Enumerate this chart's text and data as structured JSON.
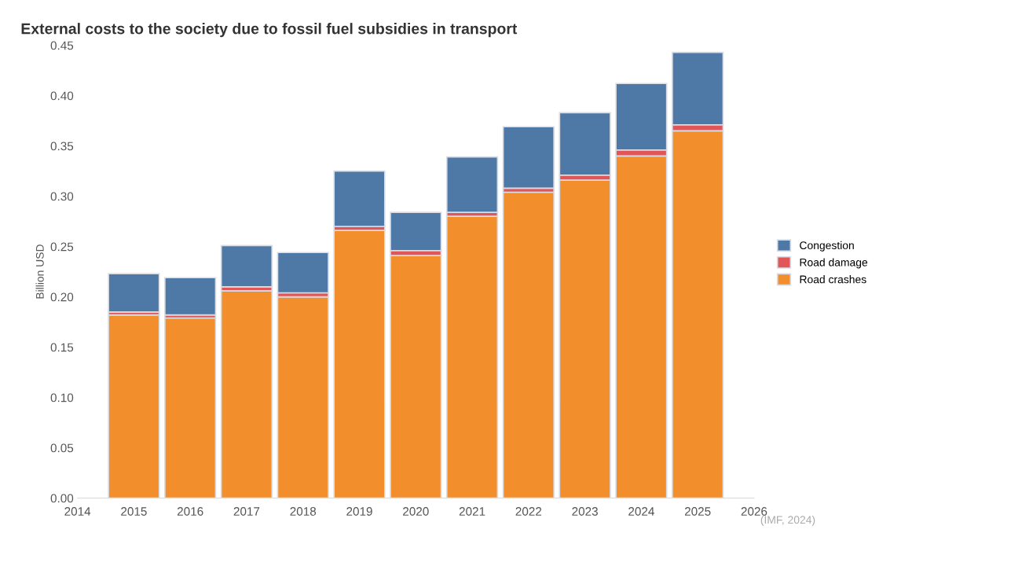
{
  "chart_data": {
    "type": "bar",
    "stacked": true,
    "title": "External costs to the society due to fossil fuel subsidies in transport",
    "ylabel": "Billion USD",
    "x": [
      2015,
      2016,
      2017,
      2018,
      2019,
      2020,
      2021,
      2022,
      2023,
      2024,
      2025
    ],
    "series": [
      {
        "name": "Road crashes",
        "color": "#f28e2b",
        "values": [
          0.182,
          0.179,
          0.206,
          0.2,
          0.266,
          0.241,
          0.28,
          0.304,
          0.316,
          0.34,
          0.365
        ]
      },
      {
        "name": "Road damage",
        "color": "#e15759",
        "values": [
          0.003,
          0.003,
          0.004,
          0.004,
          0.004,
          0.005,
          0.004,
          0.004,
          0.005,
          0.006,
          0.006
        ]
      },
      {
        "name": "Congestion",
        "color": "#4e79a7",
        "values": [
          0.038,
          0.037,
          0.041,
          0.04,
          0.055,
          0.038,
          0.055,
          0.061,
          0.062,
          0.066,
          0.072
        ]
      }
    ],
    "xlim": [
      2014,
      2026
    ],
    "xticks": [
      2014,
      2015,
      2016,
      2017,
      2018,
      2019,
      2020,
      2021,
      2022,
      2023,
      2024,
      2025,
      2026
    ],
    "ylim": [
      0,
      0.45
    ],
    "yticks": [
      {
        "value": 0,
        "label": "0.00"
      },
      {
        "value": 0.05,
        "label": "0.05"
      },
      {
        "value": 0.1,
        "label": "0.10"
      },
      {
        "value": 0.15,
        "label": "0.15"
      },
      {
        "value": 0.2,
        "label": "0.20"
      },
      {
        "value": 0.25,
        "label": "0.25"
      },
      {
        "value": 0.3,
        "label": "0.30"
      },
      {
        "value": 0.35,
        "label": "0.35"
      },
      {
        "value": 0.4,
        "label": "0.40"
      },
      {
        "value": 0.45,
        "label": "0.45"
      }
    ],
    "grid": false,
    "legend": "right",
    "annotations": [
      "(IMF, 2024)"
    ]
  }
}
